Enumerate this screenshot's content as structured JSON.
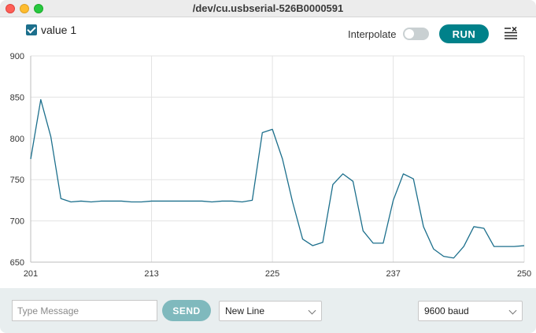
{
  "window": {
    "title": "/dev/cu.usbserial-526B0000591"
  },
  "legend": {
    "series_label": "value 1",
    "checked": true
  },
  "toolbar": {
    "interpolate_label": "Interpolate",
    "interpolate_on": false,
    "run_label": "RUN",
    "clear_icon": "clear-output-icon"
  },
  "chart_data": {
    "type": "line",
    "xlim": [
      201,
      250
    ],
    "ylim": [
      650,
      900
    ],
    "x_ticks": [
      "201",
      "213",
      "225",
      "237",
      "250"
    ],
    "y_ticks": [
      "900",
      "850",
      "800",
      "750",
      "700",
      "650"
    ],
    "grid": true,
    "series": [
      {
        "name": "value 1",
        "color": "#1c6f8c",
        "x": [
          201,
          202,
          203,
          204,
          205,
          206,
          207,
          208,
          209,
          210,
          211,
          212,
          213,
          214,
          215,
          216,
          217,
          218,
          219,
          220,
          221,
          222,
          223,
          224,
          225,
          226,
          227,
          228,
          229,
          230,
          231,
          232,
          233,
          234,
          235,
          236,
          237,
          238,
          239,
          240,
          241,
          242,
          243,
          244,
          245,
          246,
          247,
          248,
          249,
          250
        ],
        "y": [
          775,
          847,
          802,
          727,
          723,
          724,
          723,
          724,
          724,
          724,
          723,
          723,
          724,
          724,
          724,
          724,
          724,
          724,
          723,
          724,
          724,
          723,
          725,
          807,
          811,
          775,
          723,
          678,
          670,
          674,
          744,
          757,
          748,
          688,
          673,
          673,
          725,
          757,
          751,
          693,
          666,
          657,
          655,
          669,
          693,
          691,
          669,
          669,
          669,
          670
        ]
      }
    ]
  },
  "bottom": {
    "message_placeholder": "Type Message",
    "message_value": "",
    "send_label": "SEND",
    "line_ending": "New Line",
    "baud": "9600 baud"
  }
}
